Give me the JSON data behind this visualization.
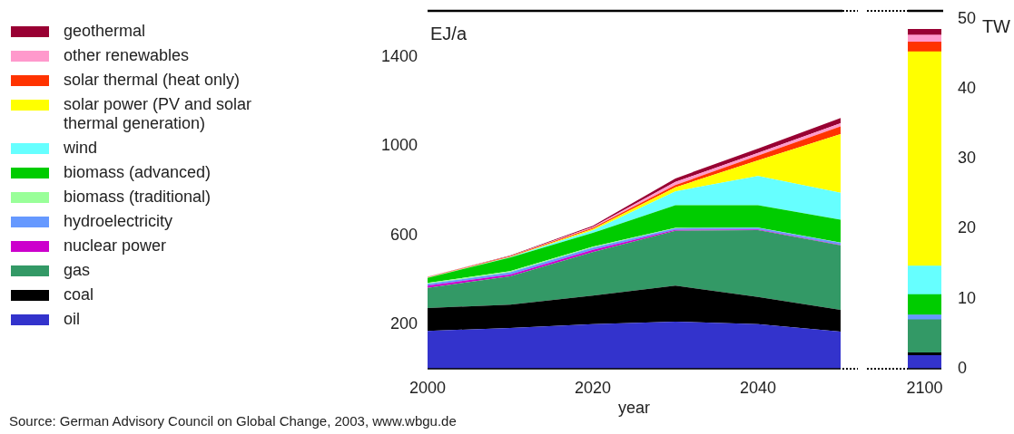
{
  "chart_data": [
    {
      "type": "area",
      "stacked": true,
      "xlabel": "year",
      "ylabel": "EJ/a",
      "legend": "left",
      "x": [
        2000,
        2010,
        2020,
        2030,
        2040,
        2050
      ],
      "xlim": [
        2000,
        2050
      ],
      "xticks": [
        2000,
        2020,
        2040
      ],
      "ylim": [
        0,
        1600
      ],
      "yticks": [
        200,
        600,
        1000,
        1400
      ],
      "annotations": [
        "Source: German Advisory Council on Global Change, 2003, www.wbgu.de"
      ],
      "series": [
        {
          "name": "oil",
          "color": "#3333cc",
          "values": [
            170,
            183,
            200,
            212,
            200,
            167
          ]
        },
        {
          "name": "coal",
          "color": "#000000",
          "values": [
            103,
            105,
            129,
            161,
            122,
            97
          ]
        },
        {
          "name": "gas",
          "color": "#339966",
          "values": [
            90,
            127,
            195,
            247,
            301,
            290
          ]
        },
        {
          "name": "nuclear power",
          "color": "#cc00cc",
          "values": [
            10,
            8,
            10,
            4,
            3,
            2
          ]
        },
        {
          "name": "hydroelectricity",
          "color": "#6699ff",
          "values": [
            8,
            10,
            10,
            7,
            7,
            10
          ]
        },
        {
          "name": "biomass (traditional)",
          "color": "#99ff99",
          "values": [
            5,
            5,
            4,
            2,
            1,
            1
          ]
        },
        {
          "name": "biomass (advanced)",
          "color": "#00cc00",
          "values": [
            22,
            62,
            62,
            101,
            100,
            102
          ]
        },
        {
          "name": "wind",
          "color": "#66ffff",
          "values": [
            1,
            2,
            12,
            63,
            132,
            121
          ]
        },
        {
          "name": "solar power (PV and solar thermal generation)",
          "color": "#ffff00",
          "values": [
            1,
            1,
            6,
            18,
            70,
            264
          ]
        },
        {
          "name": "solar thermal (heat only)",
          "color": "#ff3300",
          "values": [
            1,
            3,
            5,
            10,
            21,
            35
          ]
        },
        {
          "name": "other renewables",
          "color": "#ff99cc",
          "values": [
            1,
            1,
            4,
            14,
            12,
            14
          ]
        },
        {
          "name": "geothermal",
          "color": "#990033",
          "values": [
            1,
            2,
            5,
            16,
            20,
            23
          ]
        }
      ]
    },
    {
      "type": "bar",
      "stacked": true,
      "categories": [
        "2100"
      ],
      "y2label": "TW",
      "y2lim": [
        0,
        50
      ],
      "y2ticks": [
        0,
        10,
        20,
        30,
        40,
        50
      ],
      "series": [
        {
          "color": "#3333cc",
          "axis": "y2",
          "values": [
            1.9
          ]
        },
        {
          "color": "#000000",
          "axis": "y2",
          "values": [
            0.4
          ]
        },
        {
          "color": "#339966",
          "axis": "y2",
          "values": [
            4.7
          ]
        },
        {
          "color": "#6699ff",
          "axis": "y2",
          "values": [
            0.7
          ]
        },
        {
          "color": "#00cc00",
          "axis": "y2",
          "values": [
            2.9
          ]
        },
        {
          "color": "#66ffff",
          "axis": "y2",
          "values": [
            4.1
          ]
        },
        {
          "color": "#ffff00",
          "axis": "y2",
          "values": [
            30.6
          ]
        },
        {
          "color": "#ff3300",
          "axis": "y2",
          "values": [
            1.4
          ]
        },
        {
          "color": "#ff99cc",
          "axis": "y2",
          "values": [
            1.0
          ]
        },
        {
          "color": "#990033",
          "axis": "y2",
          "values": [
            0.8
          ]
        }
      ]
    }
  ]
}
